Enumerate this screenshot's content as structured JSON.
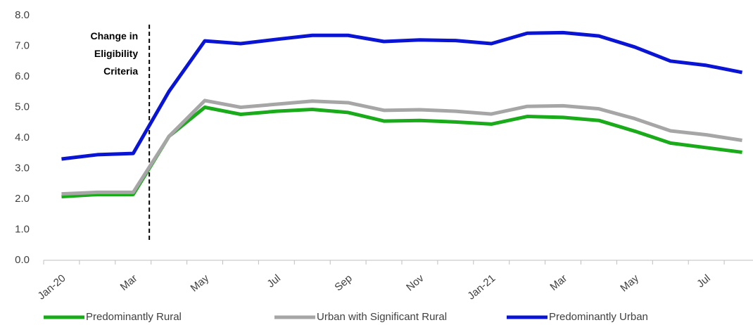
{
  "chart_data": {
    "type": "line",
    "categories": [
      "Jan-20",
      null,
      "Mar",
      null,
      "May",
      null,
      "Jul",
      null,
      "Sep",
      null,
      "Nov",
      null,
      "Jan-21",
      null,
      "Mar",
      null,
      "May",
      null,
      "Jul",
      null
    ],
    "series": [
      {
        "name": "Predominantly Rural",
        "color": "#1aab1a",
        "values": [
          2.08,
          2.15,
          2.15,
          4.05,
          5.0,
          4.77,
          4.87,
          4.93,
          4.83,
          4.55,
          4.57,
          4.52,
          4.45,
          4.7,
          4.67,
          4.57,
          4.22,
          3.83,
          3.68,
          3.53
        ]
      },
      {
        "name": "Urban with Significant Rural",
        "color": "#a6a6a6",
        "values": [
          2.17,
          2.22,
          2.22,
          4.05,
          5.22,
          5.0,
          5.1,
          5.2,
          5.15,
          4.9,
          4.92,
          4.87,
          4.78,
          5.03,
          5.05,
          4.95,
          4.63,
          4.23,
          4.1,
          3.92
        ]
      },
      {
        "name": "Predominantly Urban",
        "color": "#0a14d4",
        "values": [
          3.31,
          3.45,
          3.49,
          5.52,
          7.17,
          7.08,
          7.22,
          7.35,
          7.35,
          7.15,
          7.2,
          7.18,
          7.08,
          7.42,
          7.44,
          7.33,
          6.97,
          6.51,
          6.37,
          6.14
        ]
      }
    ],
    "annotation": "Change in Eligibility Criteria",
    "ylim": [
      0,
      8
    ],
    "yticks": [
      {
        "value": 0,
        "label": "0.0"
      },
      {
        "value": 1,
        "label": "1.0"
      },
      {
        "value": 2,
        "label": "2.0"
      },
      {
        "value": 3,
        "label": "3.0"
      },
      {
        "value": 4,
        "label": "4.0"
      },
      {
        "value": 5,
        "label": "5.0"
      },
      {
        "value": 6,
        "label": "6.0"
      },
      {
        "value": 7,
        "label": "7.0"
      },
      {
        "value": 8,
        "label": "8.0"
      }
    ],
    "legend": "bottom"
  }
}
